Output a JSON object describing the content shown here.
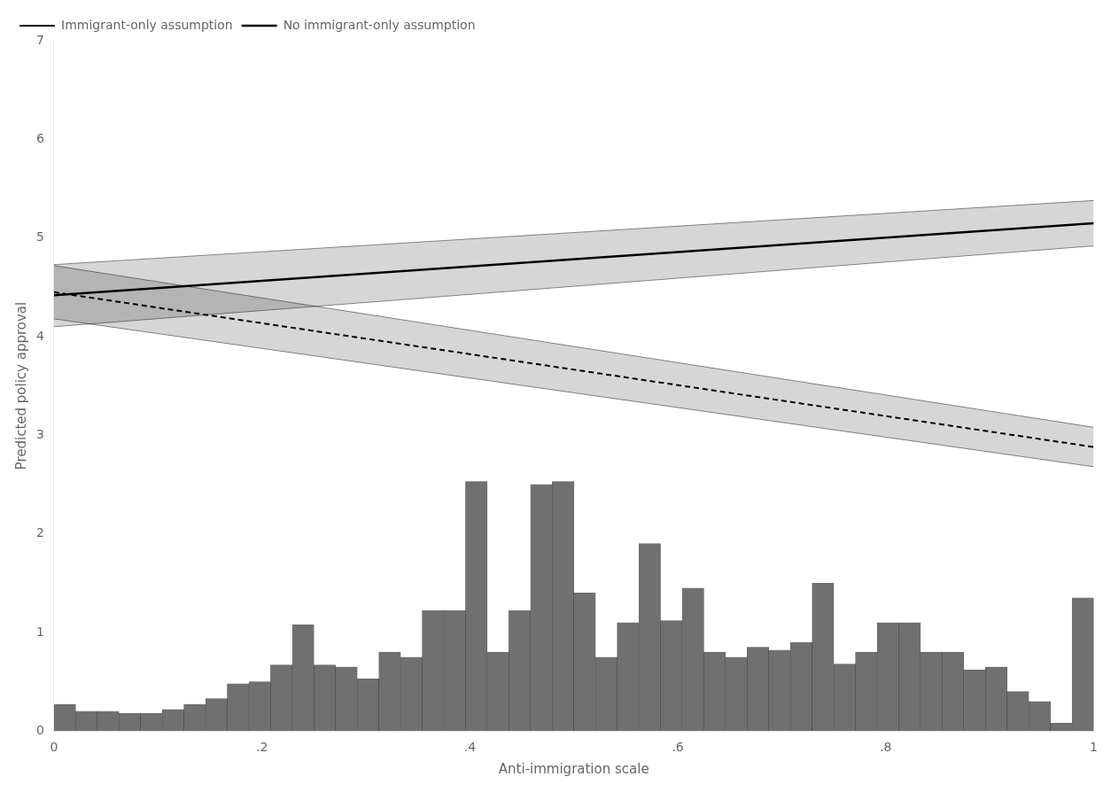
{
  "chart_data": {
    "type": "histogram",
    "xlabel": "Anti-immigration scale",
    "ylabel": "Predicted policy approval",
    "bins": [
      0,
      0.0208333333333333,
      0.0416666666666667,
      0.0625,
      0.0833333333333333,
      0.1041666666666667,
      0.125,
      0.1458333333333333,
      0.1666666666666667,
      0.1875,
      0.2083333333333333,
      0.2291666666666667,
      0.25,
      0.2708333333333333,
      0.2916666666666667,
      0.3125,
      0.3333333333333333,
      0.3541666666666667,
      0.375,
      0.3958333333333333,
      0.4166666666666667,
      0.4375,
      0.4583333333333333,
      0.4791666666666667,
      0.5,
      0.5208333333333333,
      0.5416666666666667,
      0.5625,
      0.5833333333333333,
      0.6041666666666667,
      0.625,
      0.6458333333333333,
      0.6666666666666667,
      0.6875,
      0.7083333333333333,
      0.7291666666666667,
      0.75,
      0.7708333333333333,
      0.7916666666666667,
      0.8125,
      0.8333333333333333,
      0.8541666666666667,
      0.875,
      0.8958333333333333,
      0.9166666666666667,
      0.9375,
      0.9583333333333333,
      0.9791666666666667,
      1
    ],
    "values": [
      0.27,
      0.2,
      0.2,
      0.18,
      0.18,
      0.22,
      0.27,
      0.33,
      0.48,
      0.5,
      0.67,
      1.08,
      0.67,
      0.65,
      0.53,
      0.8,
      0.75,
      1.22,
      1.22,
      2.53,
      0.8,
      1.22,
      2.5,
      2.53,
      1.4,
      0.75,
      1.1,
      1.9,
      1.12,
      1.45,
      0.8,
      0.75,
      0.85,
      0.82,
      0.9,
      1.5,
      0.68,
      0.8,
      1.1,
      1.1,
      0.8,
      0.8,
      0.62,
      0.65,
      0.4,
      0.3,
      0.08,
      1.35
    ],
    "color": "#707070",
    "xlim": [
      0,
      1
    ],
    "ylim": [
      0,
      7
    ],
    "xticks": [
      0,
      {
        "value": 0.2,
        "label": ".2"
      },
      {
        "value": 0.4,
        "label": ".4"
      },
      {
        "value": 0.6,
        "label": ".6"
      },
      {
        "value": 0.8,
        "label": ".8"
      },
      1
    ],
    "yticks": [
      0,
      1,
      2,
      3,
      4,
      5,
      6,
      7
    ],
    "grid": false,
    "legend": "upper left",
    "series": [
      {
        "name": "Immigrant-only assumption",
        "type": "line",
        "line_style": "dashed",
        "color": "#000000",
        "x": [
          0,
          1
        ],
        "values": [
          4.45,
          2.88
        ],
        "ci_lower": [
          4.18,
          2.68
        ],
        "ci_upper": [
          4.72,
          3.08
        ]
      },
      {
        "name": "No immigrant-only assumption",
        "type": "line",
        "line_style": "solid",
        "color": "#000000",
        "x": [
          0,
          1
        ],
        "values": [
          4.42,
          5.15
        ],
        "ci_lower": [
          4.1,
          4.92
        ],
        "ci_upper": [
          4.73,
          5.38
        ]
      }
    ]
  }
}
